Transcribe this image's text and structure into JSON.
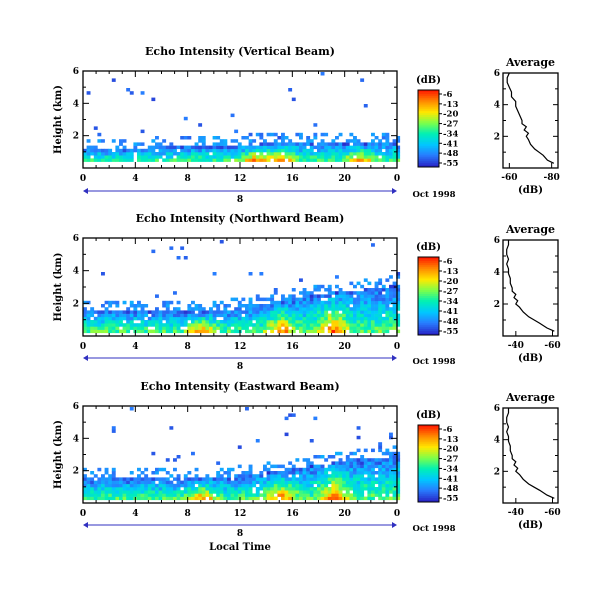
{
  "chart_data": [
    {
      "type": "heatmap",
      "title": "Echo Intensity (Vertical Beam)",
      "xlabel": "",
      "ylabel": "Height (km)",
      "xlim": [
        0,
        24
      ],
      "ylim": [
        0,
        6
      ],
      "x_ticks": [
        "0",
        "4",
        "8",
        "12",
        "16",
        "20",
        "0"
      ],
      "y_ticks": [
        "6",
        "4",
        "2"
      ],
      "date_label": "Oct 1998",
      "day_marker": "8",
      "colorbar": {
        "unit": "(dB)",
        "ticks": [
          "-6",
          "-13",
          "-20",
          "-27",
          "-34",
          "-41",
          "-48",
          "-55"
        ],
        "range": [
          -55,
          -6
        ]
      },
      "echo_band": {
        "base_km": 0.4,
        "top_km": 2.0,
        "top_trend_km": [
          1.3,
          1.3,
          1.4,
          1.5,
          1.5,
          1.7,
          1.6,
          1.6,
          1.7
        ],
        "strong_hours": [
          13,
          15,
          21
        ]
      },
      "average_profile": {
        "title": "Average",
        "xlabel": "(dB)",
        "x_ticks": [
          "-60",
          "-80"
        ],
        "xlim": [
          -57,
          -83
        ],
        "ylim": [
          0,
          6
        ],
        "y_ticks": [
          "6",
          "4",
          "2"
        ],
        "height_km": [
          0.3,
          0.5,
          0.8,
          1.0,
          1.2,
          1.5,
          1.8,
          2.0,
          2.2,
          2.4,
          2.6,
          2.8,
          3.0,
          3.3,
          3.6,
          3.9,
          4.2,
          4.5,
          4.8,
          5.1,
          5.4,
          5.7,
          6.0
        ],
        "db": [
          -81,
          -78,
          -76,
          -74,
          -72,
          -70,
          -69,
          -68,
          -69,
          -67,
          -68,
          -66,
          -66,
          -65,
          -64,
          -63,
          -63,
          -61,
          -61,
          -60,
          -59,
          -59,
          -60
        ]
      }
    },
    {
      "type": "heatmap",
      "title": "Echo Intensity (Northward Beam)",
      "xlabel": "",
      "ylabel": "Height (km)",
      "xlim": [
        0,
        24
      ],
      "ylim": [
        0,
        6
      ],
      "x_ticks": [
        "0",
        "4",
        "8",
        "12",
        "16",
        "20",
        "0"
      ],
      "y_ticks": [
        "6",
        "4",
        "2"
      ],
      "date_label": "Oct 1998",
      "day_marker": "8",
      "colorbar": {
        "unit": "(dB)",
        "ticks": [
          "-6",
          "-13",
          "-20",
          "-27",
          "-34",
          "-41",
          "-48",
          "-55"
        ],
        "range": [
          -55,
          -6
        ]
      },
      "echo_band": {
        "base_km": 0.2,
        "top_km": 3.5,
        "top_trend_km": [
          1.7,
          1.7,
          1.6,
          1.6,
          1.8,
          2.2,
          2.7,
          2.9,
          3.2
        ],
        "strong_hours": [
          9,
          15,
          19
        ]
      },
      "average_profile": {
        "title": "Average",
        "xlabel": "(dB)",
        "x_ticks": [
          "-40",
          "-60"
        ],
        "xlim": [
          -33,
          -63
        ],
        "ylim": [
          0,
          6
        ],
        "y_ticks": [
          "6",
          "4",
          "2"
        ],
        "height_km": [
          0.3,
          0.5,
          0.8,
          1.0,
          1.2,
          1.5,
          1.8,
          2.0,
          2.2,
          2.4,
          2.6,
          2.8,
          3.0,
          3.3,
          3.6,
          3.9,
          4.2,
          4.5,
          4.8,
          5.1,
          5.4,
          5.7,
          6.0
        ],
        "db": [
          -61,
          -57,
          -53,
          -50,
          -47,
          -44,
          -42,
          -40,
          -41,
          -39,
          -40,
          -38,
          -38,
          -37,
          -37,
          -36,
          -36,
          -35,
          -36,
          -35,
          -35,
          -36,
          -36
        ]
      }
    },
    {
      "type": "heatmap",
      "title": "Echo Intensity (Eastward Beam)",
      "xlabel": "Local Time",
      "ylabel": "Height (km)",
      "xlim": [
        0,
        24
      ],
      "ylim": [
        0,
        6
      ],
      "x_ticks": [
        "0",
        "4",
        "8",
        "12",
        "16",
        "20",
        "0"
      ],
      "y_ticks": [
        "6",
        "4",
        "2"
      ],
      "date_label": "Oct 1998",
      "day_marker": "8",
      "colorbar": {
        "unit": "(dB)",
        "ticks": [
          "-6",
          "-13",
          "-20",
          "-27",
          "-34",
          "-41",
          "-48",
          "-55"
        ],
        "range": [
          -55,
          -6
        ]
      },
      "echo_band": {
        "base_km": 0.2,
        "top_km": 3.3,
        "top_trend_km": [
          1.6,
          1.6,
          1.6,
          1.6,
          1.8,
          2.1,
          2.5,
          2.8,
          3.0
        ],
        "strong_hours": [
          9,
          15,
          19
        ]
      },
      "average_profile": {
        "title": "Average",
        "xlabel": "(dB)",
        "x_ticks": [
          "-40",
          "-60"
        ],
        "xlim": [
          -33,
          -63
        ],
        "ylim": [
          0,
          6
        ],
        "y_ticks": [
          "6",
          "4",
          "2"
        ],
        "height_km": [
          0.3,
          0.5,
          0.8,
          1.0,
          1.2,
          1.5,
          1.8,
          2.0,
          2.2,
          2.4,
          2.6,
          2.8,
          3.0,
          3.3,
          3.6,
          3.9,
          4.2,
          4.5,
          4.8,
          5.1,
          5.4,
          5.7,
          6.0
        ],
        "db": [
          -61,
          -57,
          -53,
          -50,
          -47,
          -44,
          -42,
          -40,
          -41,
          -39,
          -40,
          -38,
          -38,
          -37,
          -37,
          -36,
          -36,
          -35,
          -36,
          -35,
          -35,
          -36,
          -36
        ]
      }
    }
  ]
}
